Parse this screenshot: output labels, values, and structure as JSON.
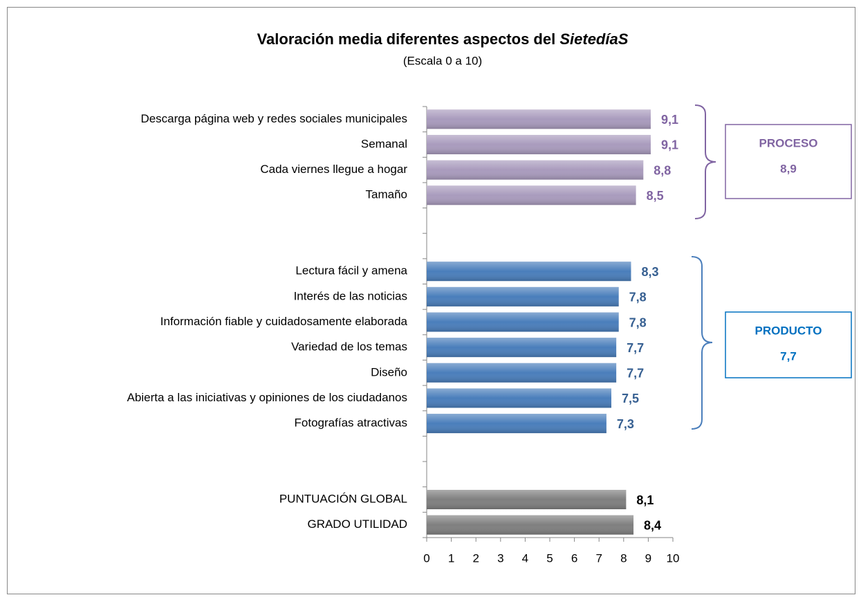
{
  "chart_data": {
    "type": "bar",
    "orientation": "horizontal",
    "title": "Valoración media diferentes aspectos del",
    "title_italic": "SietedíaS",
    "subtitle": "(Escala 0 a 10)",
    "categories": [
      "Descarga página web y redes sociales municipales",
      "Semanal",
      "Cada viernes llegue a hogar",
      "Tamaño",
      null,
      null,
      "Lectura fácil y amena",
      "Interés de las noticias",
      "Información fiable y cuidadosamente elaborada",
      "Variedad de los temas",
      "Diseño",
      "Abierta a las iniciativas y opiniones de los ciudadanos",
      "Fotografías atractivas",
      null,
      null,
      "PUNTUACIÓN GLOBAL",
      "GRADO UTILIDAD"
    ],
    "values": [
      9.1,
      9.1,
      8.8,
      8.5,
      null,
      null,
      8.3,
      7.8,
      7.8,
      7.7,
      7.7,
      7.5,
      7.3,
      null,
      null,
      8.1,
      8.4
    ],
    "value_labels": [
      "9,1",
      "9,1",
      "8,8",
      "8,5",
      null,
      null,
      "8,3",
      "7,8",
      "7,8",
      "7,7",
      "7,7",
      "7,5",
      "7,3",
      null,
      null,
      "8,1",
      "8,4"
    ],
    "colors": [
      "#a99bbd",
      "#a99bbd",
      "#a99bbd",
      "#a99bbd",
      null,
      null,
      "#4a7ebb",
      "#4a7ebb",
      "#4a7ebb",
      "#4a7ebb",
      "#4a7ebb",
      "#4a7ebb",
      "#4a7ebb",
      null,
      null,
      "#7f7f7f",
      "#7f7f7f"
    ],
    "label_colors": [
      "#8064a2",
      "#8064a2",
      "#8064a2",
      "#8064a2",
      null,
      null,
      "#376092",
      "#376092",
      "#376092",
      "#376092",
      "#376092",
      "#376092",
      "#376092",
      null,
      null,
      "#000000",
      "#000000"
    ],
    "xlim": [
      0,
      10
    ],
    "xticks": [
      0,
      1,
      2,
      3,
      4,
      5,
      6,
      7,
      8,
      9,
      10
    ],
    "annotations": [
      {
        "title": "PROCESO",
        "text": "8,9",
        "color": "#8064a2"
      },
      {
        "title": "PRODUCTO",
        "text": "7,7",
        "color": "#0070c0"
      }
    ]
  }
}
